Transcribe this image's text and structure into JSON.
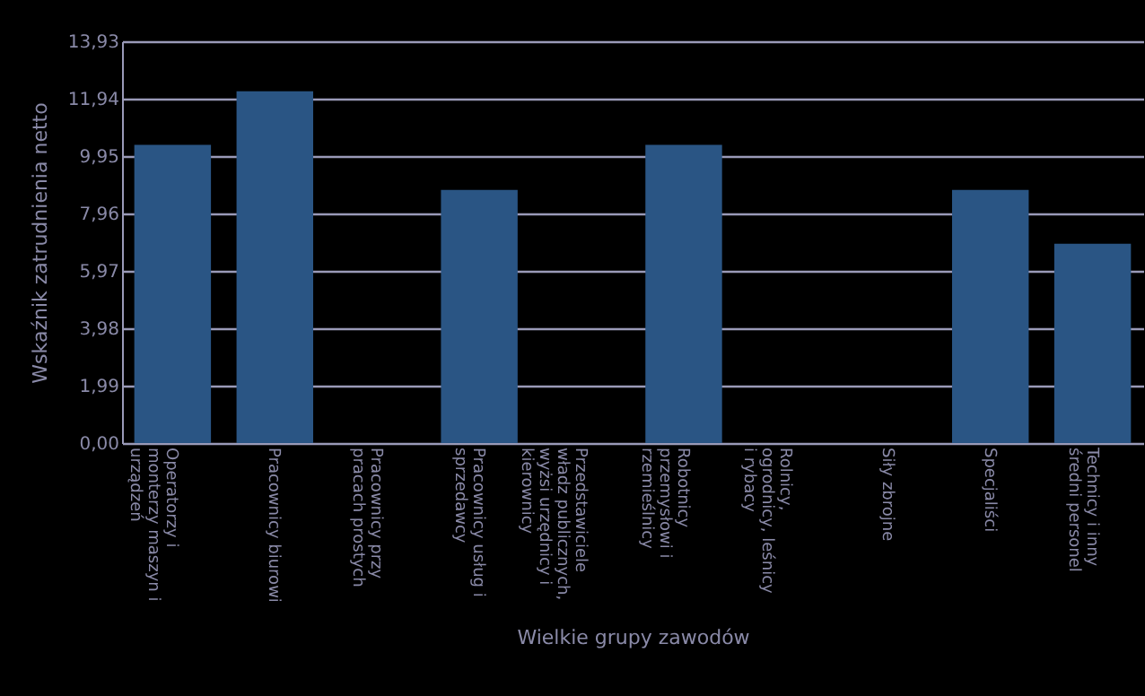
{
  "chart_data": {
    "type": "bar",
    "xlabel": "Wielkie grupy zawodów",
    "ylabel": "Wskaźnik zatrudnienia netto",
    "categories": [
      "Operatorzy i monterzy maszyn i urządzeń",
      "Pracownicy biurowi",
      "Pracownicy przy pracach prostych",
      "Pracownicy usług i sprzedawcy",
      "Przedstawiciele władz publicznych, wyżsi urzędnicy i kierownicy",
      "Robotnicy przemysłowi i rzemieślnicy",
      "Rolnicy, ogrodnicy, leśnicy i rybacy",
      "Siły zbrojne",
      "Specjaliści",
      "Technicy i inny średni personel"
    ],
    "values": [
      10.34,
      12.2,
      0,
      8.78,
      0,
      10.34,
      0,
      0,
      8.78,
      6.91
    ],
    "color": "#2a5584",
    "ylim": [
      0,
      13.93
    ],
    "yticks": [
      {
        "value": 0,
        "label": "0,00"
      },
      {
        "value": 1.99,
        "label": "1,99"
      },
      {
        "value": 3.98,
        "label": "3,98"
      },
      {
        "value": 5.97,
        "label": "5,97"
      },
      {
        "value": 7.96,
        "label": "7,96"
      },
      {
        "value": 9.95,
        "label": "9,95"
      },
      {
        "value": 11.94,
        "label": "11,94"
      },
      {
        "value": 13.93,
        "label": "13,93"
      }
    ],
    "grid": "y"
  }
}
